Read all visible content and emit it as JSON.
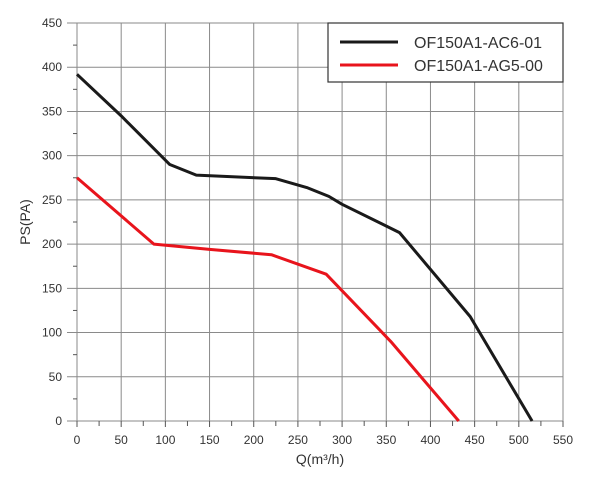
{
  "chart_data": {
    "type": "line",
    "title": "",
    "xlabel": "Q(m³/h)",
    "ylabel": "PS(PA)",
    "xlim": [
      0,
      550
    ],
    "ylim": [
      0,
      450
    ],
    "xticks": [
      0,
      50,
      100,
      150,
      200,
      250,
      300,
      350,
      400,
      450,
      500,
      550
    ],
    "yticks": [
      0,
      50,
      100,
      150,
      200,
      250,
      300,
      350,
      400,
      450
    ],
    "grid": true,
    "legend_position": "top-right",
    "series": [
      {
        "name": "OF150A1-AC6-01",
        "color": "#1a1a1a",
        "x": [
          0,
          50,
          105,
          135,
          225,
          260,
          285,
          300,
          365,
          445,
          515
        ],
        "y": [
          392,
          345,
          290,
          278,
          274,
          264,
          254,
          245,
          213,
          118,
          0
        ]
      },
      {
        "name": "OF150A1-AG5-00",
        "color": "#e8141c",
        "x": [
          0,
          87,
          150,
          220,
          282,
          355,
          432
        ],
        "y": [
          275,
          200,
          194,
          188,
          166,
          90,
          0
        ]
      }
    ]
  }
}
